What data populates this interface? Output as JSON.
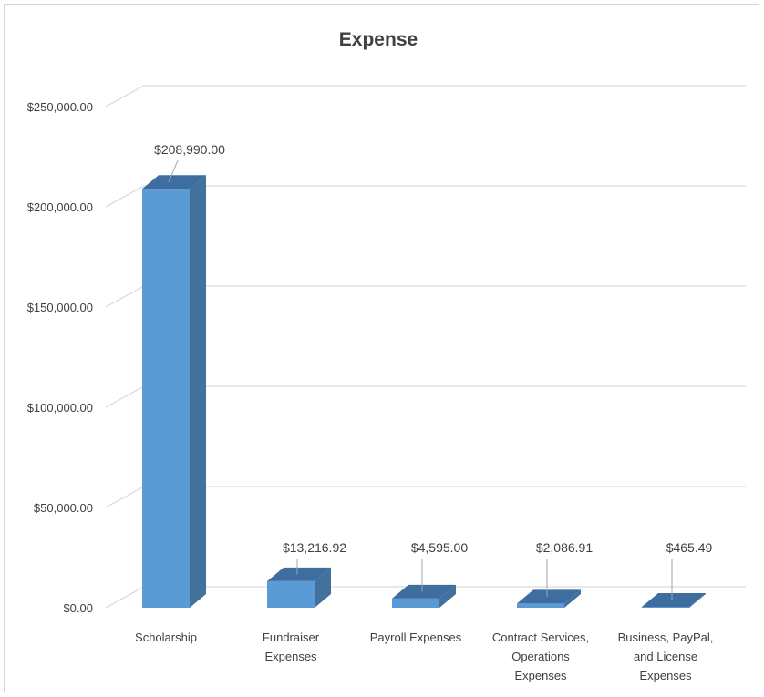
{
  "chart_data": {
    "type": "bar",
    "title": "Expense",
    "xlabel": "",
    "ylabel": "",
    "ylim": [
      0,
      250000
    ],
    "y_ticks": [
      0,
      50000,
      100000,
      150000,
      200000,
      250000
    ],
    "y_tick_labels": [
      "$0.00",
      "$50,000.00",
      "$100,000.00",
      "$150,000.00",
      "$200,000.00",
      "$250,000.00"
    ],
    "grid": true,
    "legend": "none",
    "style": "3d-column",
    "categories": [
      [
        "Scholarship"
      ],
      [
        "Fundraiser",
        "Expenses"
      ],
      [
        "Payroll Expenses"
      ],
      [
        "Contract Services,",
        "Operations",
        "Expenses"
      ],
      [
        "Business, PayPal,",
        "and License",
        "Expenses"
      ]
    ],
    "values": [
      208990.0,
      13216.92,
      4595.0,
      2086.91,
      465.49
    ],
    "data_labels": [
      "$208,990.00",
      "$13,216.92",
      "$4,595.00",
      "$2,086.91",
      "$465.49"
    ],
    "colors": {
      "front": "#5b9bd5",
      "side": "#41719c",
      "top": "#3e6ea0",
      "gridline": "#d9d9d9",
      "text": "#404040"
    }
  }
}
